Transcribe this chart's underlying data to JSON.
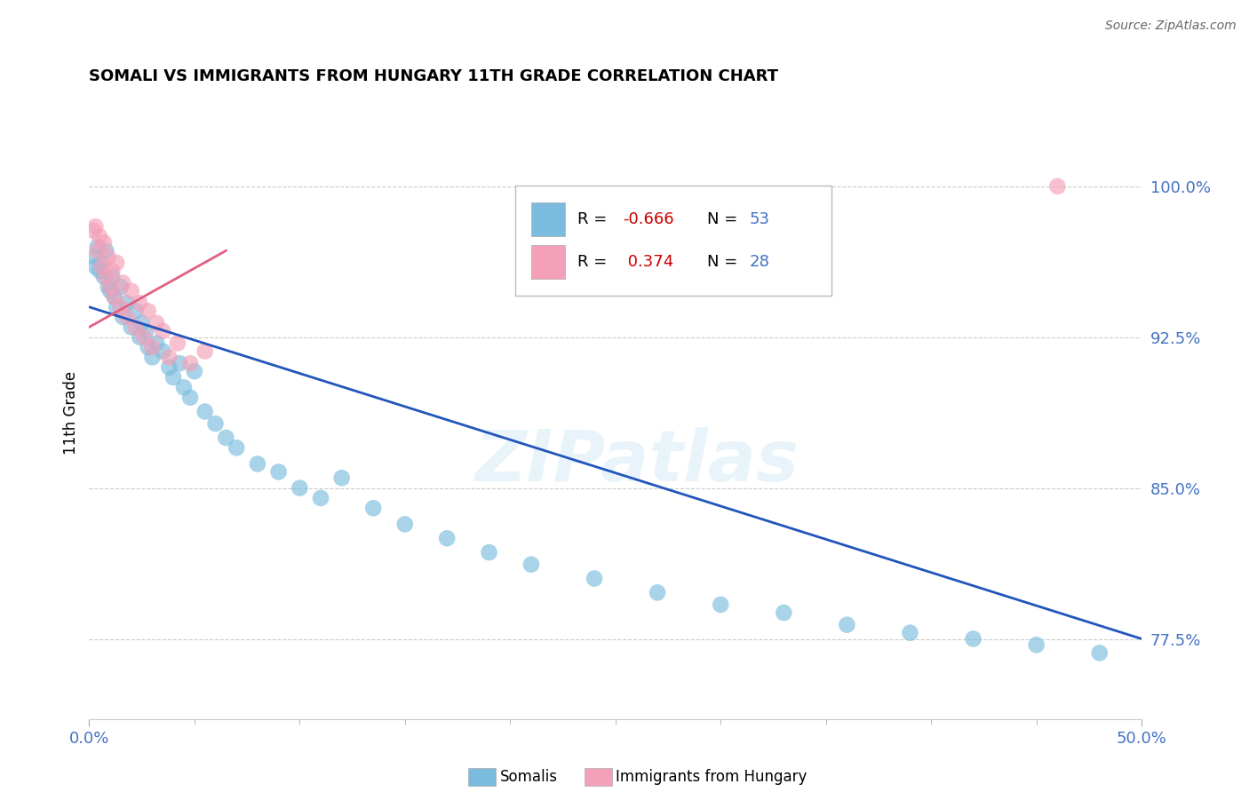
{
  "title": "SOMALI VS IMMIGRANTS FROM HUNGARY 11TH GRADE CORRELATION CHART",
  "source": "Source: ZipAtlas.com",
  "ylabel": "11th Grade",
  "ylabel_ticks": [
    "77.5%",
    "85.0%",
    "92.5%",
    "100.0%"
  ],
  "ylabel_values": [
    0.775,
    0.85,
    0.925,
    1.0
  ],
  "xmin": 0.0,
  "xmax": 0.5,
  "ymin": 0.735,
  "ymax": 1.04,
  "blue_color": "#7bbcde",
  "pink_color": "#f4a0b8",
  "blue_line_color": "#2255bb",
  "pink_line_color": "#e06080",
  "watermark": "ZIPatlas",
  "somali_x": [
    0.002,
    0.003,
    0.004,
    0.005,
    0.006,
    0.007,
    0.008,
    0.009,
    0.01,
    0.011,
    0.012,
    0.013,
    0.015,
    0.016,
    0.018,
    0.02,
    0.022,
    0.024,
    0.025,
    0.027,
    0.028,
    0.03,
    0.032,
    0.035,
    0.038,
    0.04,
    0.043,
    0.045,
    0.048,
    0.05,
    0.055,
    0.06,
    0.065,
    0.07,
    0.08,
    0.09,
    0.1,
    0.11,
    0.12,
    0.135,
    0.15,
    0.17,
    0.19,
    0.21,
    0.24,
    0.27,
    0.3,
    0.33,
    0.36,
    0.39,
    0.42,
    0.45,
    0.48
  ],
  "somali_y": [
    0.965,
    0.96,
    0.97,
    0.958,
    0.962,
    0.955,
    0.968,
    0.95,
    0.948,
    0.955,
    0.945,
    0.94,
    0.95,
    0.935,
    0.942,
    0.93,
    0.938,
    0.925,
    0.932,
    0.928,
    0.92,
    0.915,
    0.922,
    0.918,
    0.91,
    0.905,
    0.912,
    0.9,
    0.895,
    0.908,
    0.888,
    0.882,
    0.875,
    0.87,
    0.862,
    0.858,
    0.85,
    0.845,
    0.855,
    0.84,
    0.832,
    0.825,
    0.818,
    0.812,
    0.805,
    0.798,
    0.792,
    0.788,
    0.782,
    0.778,
    0.775,
    0.772,
    0.768
  ],
  "hungary_x": [
    0.002,
    0.003,
    0.004,
    0.005,
    0.006,
    0.007,
    0.008,
    0.009,
    0.01,
    0.011,
    0.012,
    0.013,
    0.015,
    0.016,
    0.018,
    0.02,
    0.022,
    0.024,
    0.026,
    0.028,
    0.03,
    0.032,
    0.035,
    0.038,
    0.042,
    0.048,
    0.055,
    0.46
  ],
  "hungary_y": [
    0.978,
    0.98,
    0.968,
    0.975,
    0.96,
    0.972,
    0.955,
    0.965,
    0.95,
    0.958,
    0.945,
    0.962,
    0.94,
    0.952,
    0.935,
    0.948,
    0.93,
    0.942,
    0.925,
    0.938,
    0.92,
    0.932,
    0.928,
    0.915,
    0.922,
    0.912,
    0.918,
    1.0
  ],
  "blue_trend_x": [
    0.0,
    0.5
  ],
  "blue_trend_y": [
    0.94,
    0.775
  ],
  "pink_trend_x": [
    0.0,
    0.065
  ],
  "pink_trend_y": [
    0.93,
    0.968
  ]
}
